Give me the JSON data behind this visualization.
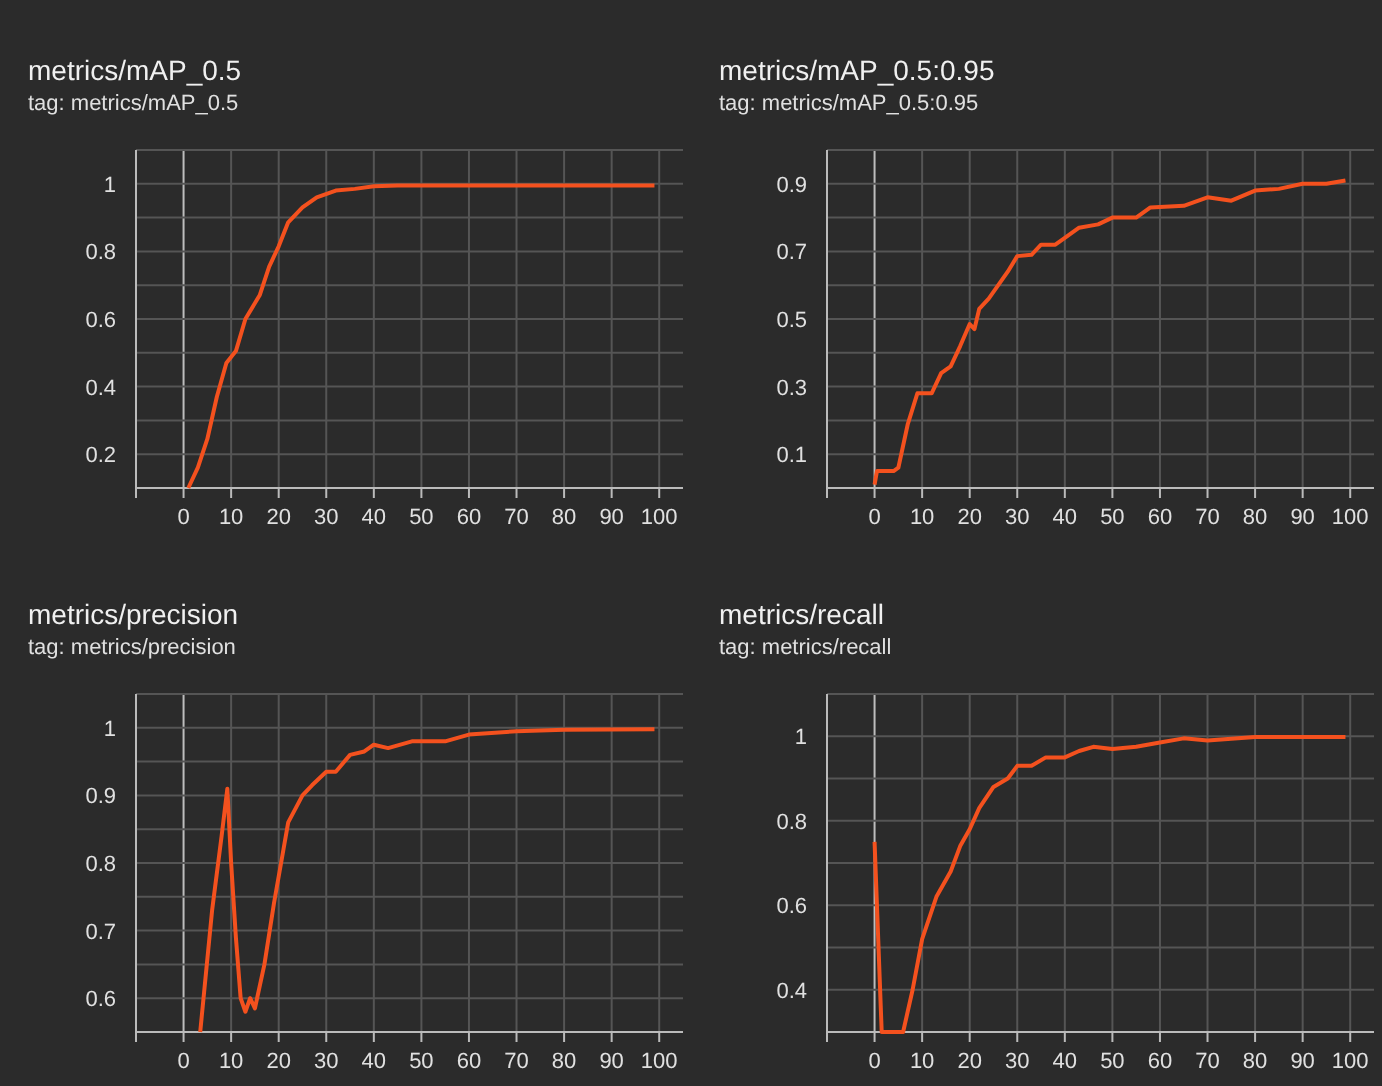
{
  "chart_data": [
    {
      "type": "line",
      "title": "metrics/mAP_0.5",
      "subtitle": "tag: metrics/mAP_0.5",
      "xlim": [
        -10,
        105
      ],
      "xticks": [
        0,
        10,
        20,
        30,
        40,
        50,
        60,
        70,
        80,
        90,
        100
      ],
      "ylim": [
        0.1,
        1.1
      ],
      "yticks": [
        {
          "value": 0.1,
          "label": null
        },
        0.2,
        {
          "value": 0.3,
          "label": null
        },
        0.4,
        {
          "value": 0.5,
          "label": null
        },
        0.6,
        {
          "value": 0.7,
          "label": null
        },
        0.8,
        {
          "value": 0.9,
          "label": null
        },
        1,
        {
          "value": 1.1,
          "label": null
        }
      ],
      "grid": true,
      "series": [
        {
          "color": "#f4511e",
          "x": [
            1,
            3,
            5,
            7,
            9,
            11,
            13,
            16,
            18,
            20,
            22,
            25,
            28,
            32,
            36,
            40,
            45,
            50,
            60,
            70,
            80,
            90,
            99
          ],
          "values": [
            0.1,
            0.16,
            0.245,
            0.37,
            0.47,
            0.505,
            0.6,
            0.67,
            0.755,
            0.815,
            0.886,
            0.93,
            0.96,
            0.98,
            0.985,
            0.993,
            0.995,
            0.995,
            0.995,
            0.995,
            0.995,
            0.995,
            0.995
          ]
        }
      ]
    },
    {
      "type": "line",
      "title": "metrics/mAP_0.5:0.95",
      "subtitle": "tag: metrics/mAP_0.5:0.95",
      "xlim": [
        -10,
        105
      ],
      "xticks": [
        0,
        10,
        20,
        30,
        40,
        50,
        60,
        70,
        80,
        90,
        100
      ],
      "ylim": [
        0,
        1
      ],
      "yticks": [
        {
          "value": 0,
          "label": null
        },
        0.1,
        {
          "value": 0.2,
          "label": null
        },
        0.3,
        {
          "value": 0.4,
          "label": null
        },
        0.5,
        {
          "value": 0.6,
          "label": null
        },
        0.7,
        {
          "value": 0.8,
          "label": null
        },
        0.9,
        {
          "value": 1,
          "label": null
        }
      ],
      "grid": true,
      "series": [
        {
          "color": "#f4511e",
          "x": [
            0,
            0.5,
            4,
            5,
            7,
            9,
            10,
            12,
            14,
            16,
            18,
            20,
            21,
            22,
            24,
            26,
            28,
            30,
            33,
            35,
            38,
            40,
            43,
            47,
            50,
            55,
            58,
            65,
            70,
            75,
            80,
            85,
            90,
            95,
            99
          ],
          "values": [
            0.01,
            0.05,
            0.05,
            0.06,
            0.19,
            0.28,
            0.28,
            0.28,
            0.34,
            0.36,
            0.42,
            0.485,
            0.47,
            0.53,
            0.56,
            0.6,
            0.64,
            0.686,
            0.69,
            0.72,
            0.72,
            0.74,
            0.77,
            0.78,
            0.8,
            0.8,
            0.83,
            0.835,
            0.86,
            0.85,
            0.88,
            0.885,
            0.9,
            0.9,
            0.91
          ]
        }
      ]
    },
    {
      "type": "line",
      "title": "metrics/precision",
      "subtitle": "tag: metrics/precision",
      "xlim": [
        -10,
        105
      ],
      "xticks": [
        0,
        10,
        20,
        30,
        40,
        50,
        60,
        70,
        80,
        90,
        100
      ],
      "ylim": [
        0.55,
        1.05
      ],
      "yticks": [
        {
          "value": 0.55,
          "label": null
        },
        0.6,
        {
          "value": 0.65,
          "label": null
        },
        0.7,
        {
          "value": 0.75,
          "label": null
        },
        0.8,
        {
          "value": 0.85,
          "label": null
        },
        0.9,
        {
          "value": 0.95,
          "label": null
        },
        1,
        {
          "value": 1.05,
          "label": null
        }
      ],
      "grid": true,
      "series": [
        {
          "color": "#f4511e",
          "x": [
            3.5,
            6,
            8,
            9.2,
            10,
            11,
            12,
            13,
            14,
            15,
            17,
            19,
            21,
            22,
            25,
            27,
            30,
            32,
            35,
            38,
            40,
            43,
            48,
            55,
            60,
            70,
            80,
            99
          ],
          "values": [
            0.55,
            0.73,
            0.84,
            0.91,
            0.8,
            0.69,
            0.6,
            0.58,
            0.6,
            0.585,
            0.65,
            0.74,
            0.82,
            0.86,
            0.9,
            0.915,
            0.935,
            0.935,
            0.96,
            0.965,
            0.975,
            0.97,
            0.98,
            0.98,
            0.99,
            0.995,
            0.997,
            0.998
          ]
        }
      ]
    },
    {
      "type": "line",
      "title": "metrics/recall",
      "subtitle": "tag: metrics/recall",
      "xlim": [
        -10,
        105
      ],
      "xticks": [
        0,
        10,
        20,
        30,
        40,
        50,
        60,
        70,
        80,
        90,
        100
      ],
      "ylim": [
        0.3,
        1.1
      ],
      "yticks": [
        {
          "value": 0.3,
          "label": null
        },
        0.4,
        {
          "value": 0.5,
          "label": null
        },
        0.6,
        {
          "value": 0.7,
          "label": null
        },
        0.8,
        {
          "value": 0.9,
          "label": null
        },
        1,
        {
          "value": 1.1,
          "label": null
        }
      ],
      "grid": true,
      "series": [
        {
          "color": "#f4511e",
          "x": [
            0,
            1.5,
            6,
            8,
            10,
            13,
            16,
            18,
            20,
            22,
            25,
            28,
            30,
            33,
            36,
            40,
            43,
            46,
            50,
            55,
            60,
            65,
            70,
            80,
            99
          ],
          "values": [
            0.75,
            0.3,
            0.3,
            0.4,
            0.52,
            0.62,
            0.68,
            0.74,
            0.78,
            0.83,
            0.88,
            0.9,
            0.93,
            0.93,
            0.95,
            0.95,
            0.965,
            0.975,
            0.97,
            0.975,
            0.985,
            0.995,
            0.99,
            0.998,
            0.998
          ]
        }
      ]
    }
  ]
}
